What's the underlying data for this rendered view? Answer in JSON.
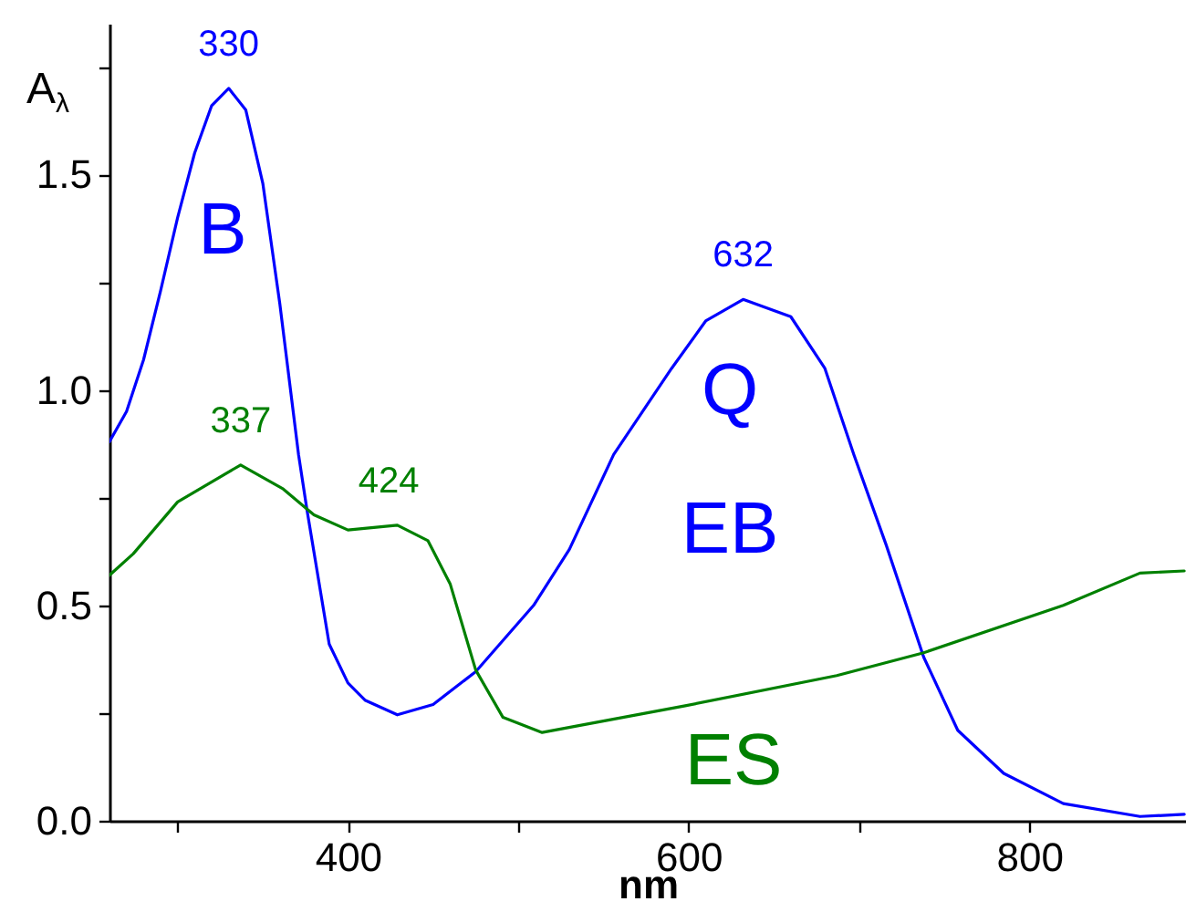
{
  "chart_data": {
    "type": "line",
    "xlabel": "nm",
    "ylabel": "A$_{λ}$",
    "xlim": [
      260,
      892
    ],
    "ylim": [
      0,
      1.85
    ],
    "xticks": [
      {
        "value": 300,
        "label": null
      },
      400,
      {
        "value": 500,
        "label": null
      },
      600,
      {
        "value": 700,
        "label": null
      },
      800
    ],
    "yticks": [
      {
        "value": 0,
        "label": "0.0"
      },
      {
        "value": 0.25,
        "label": null
      },
      {
        "value": 0.5,
        "label": "0.5"
      },
      {
        "value": 0.75,
        "label": null
      },
      {
        "value": 1,
        "label": "1.0"
      },
      {
        "value": 1.25,
        "label": null
      },
      {
        "value": 1.5,
        "label": "1.5"
      },
      {
        "value": 1.75,
        "label": null
      }
    ],
    "grid": false,
    "series": [
      {
        "name": "EB",
        "color": "#0000ff",
        "x": [
          260,
          270,
          280,
          290,
          300,
          310,
          320,
          330,
          340,
          350,
          360,
          371,
          376,
          389,
          400,
          410,
          429,
          450,
          475,
          509,
          530,
          556,
          590,
          610,
          632,
          660,
          680,
          697,
          716,
          738,
          758,
          785,
          820,
          865,
          891
        ],
        "values": [
          0.88,
          0.95,
          1.07,
          1.23,
          1.4,
          1.55,
          1.66,
          1.7,
          1.65,
          1.48,
          1.2,
          0.85,
          0.72,
          0.41,
          0.32,
          0.28,
          0.246,
          0.27,
          0.346,
          0.5,
          0.63,
          0.85,
          1.05,
          1.16,
          1.21,
          1.17,
          1.05,
          0.85,
          0.64,
          0.38,
          0.21,
          0.11,
          0.04,
          0.01,
          0.015
        ]
      },
      {
        "name": "ES",
        "color": "#008000",
        "x": [
          260,
          274,
          300,
          337,
          362,
          380,
          400,
          429,
          447,
          460,
          475,
          491,
          514,
          598,
          687,
          738,
          820,
          865,
          891
        ],
        "values": [
          0.57,
          0.62,
          0.74,
          0.826,
          0.77,
          0.71,
          0.675,
          0.686,
          0.65,
          0.55,
          0.35,
          0.24,
          0.205,
          0.267,
          0.337,
          0.39,
          0.5,
          0.575,
          0.58
        ]
      }
    ],
    "annotations": [
      {
        "text": "330",
        "x": 330,
        "y": 1.7
      },
      {
        "text": "632",
        "x": 632,
        "y": 1.21
      },
      {
        "text": "337",
        "x": 337,
        "y": 0.826
      },
      {
        "text": "424",
        "x": 424,
        "y": 0.686
      },
      "B",
      "Q"
    ]
  }
}
